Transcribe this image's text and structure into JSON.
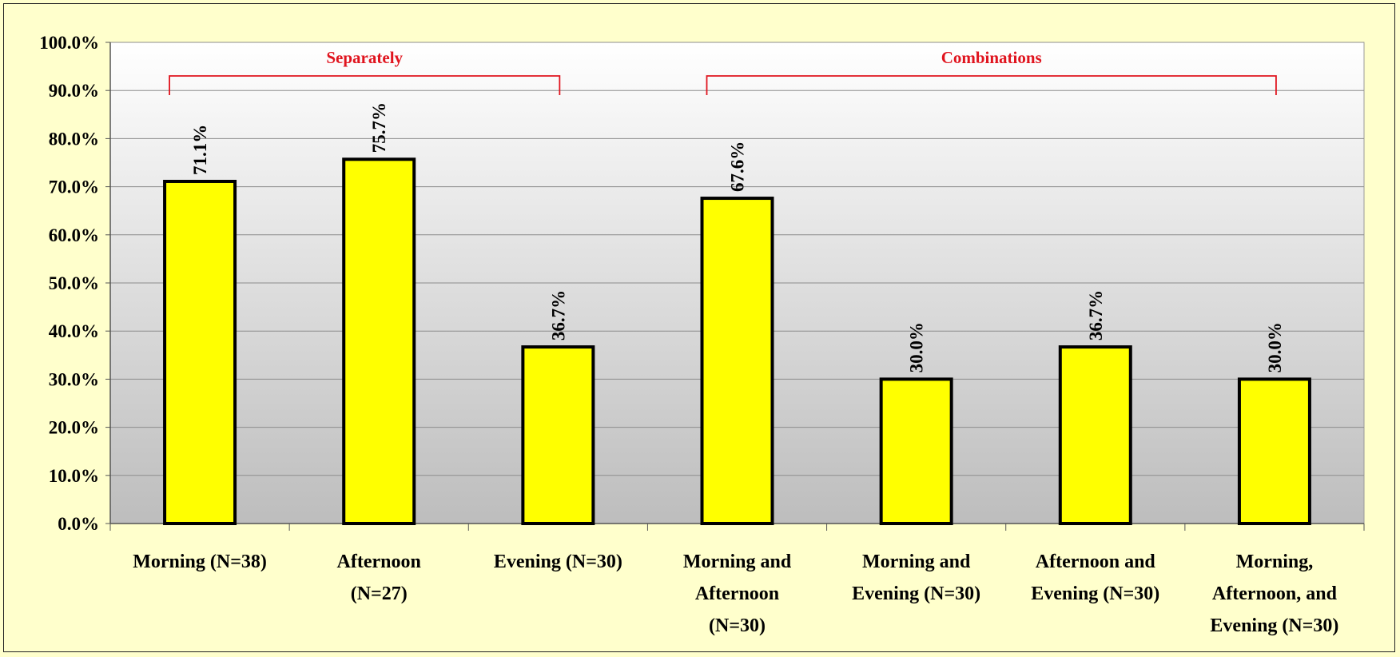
{
  "chart_data": {
    "type": "bar",
    "categories": [
      [
        "Morning (N=38)"
      ],
      [
        "Afternoon",
        "(N=27)"
      ],
      [
        "Evening (N=30)"
      ],
      [
        "Morning and",
        "Afternoon",
        "(N=30)"
      ],
      [
        "Morning and",
        "Evening (N=30)"
      ],
      [
        "Afternoon and",
        "Evening (N=30)"
      ],
      [
        "Morning,",
        "Afternoon, and",
        "Evening (N=30)"
      ]
    ],
    "values": [
      71.1,
      75.7,
      36.7,
      67.6,
      30.0,
      36.7,
      30.0
    ],
    "data_labels": [
      "71.1%",
      "75.7%",
      "36.7%",
      "67.6%",
      "30.0%",
      "36.7%",
      "30.0%"
    ],
    "yticks": [
      "0.0%",
      "10.0%",
      "20.0%",
      "30.0%",
      "40.0%",
      "50.0%",
      "60.0%",
      "70.0%",
      "80.0%",
      "90.0%",
      "100.0%"
    ],
    "ylim": [
      0,
      100
    ],
    "title": "",
    "xlabel": "",
    "ylabel": "",
    "grid": true,
    "groups": [
      {
        "label": "Separately",
        "from": 0,
        "to": 2
      },
      {
        "label": "Combinations",
        "from": 3,
        "to": 6
      }
    ],
    "colors": {
      "bar": "#ffff00",
      "bar_outline": "#000000",
      "group_bracket": "#e0141e",
      "background": "#ffffcc"
    }
  }
}
